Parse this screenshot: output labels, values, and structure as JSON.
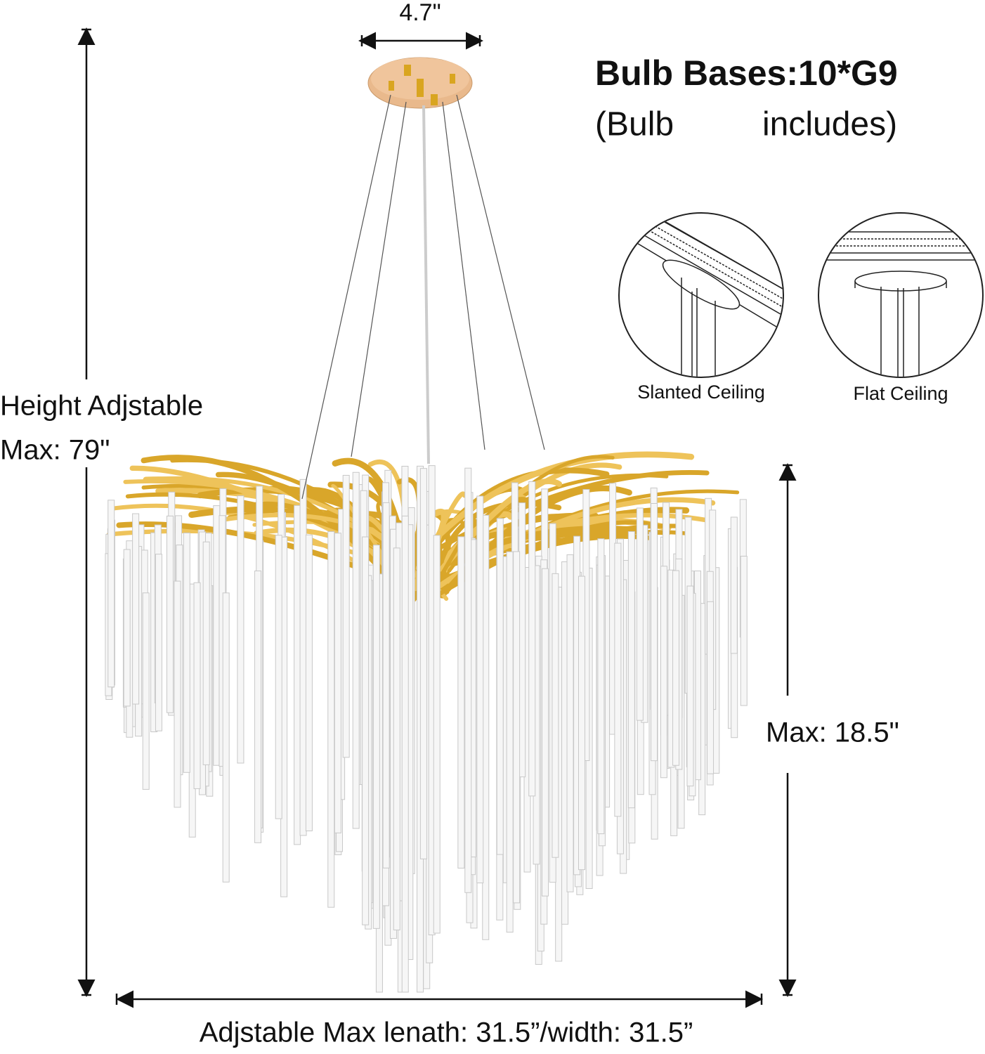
{
  "dimensions": {
    "canopy_width": "4.7\"",
    "height_label": "Height Adjstable",
    "height_max": "Max: 79\"",
    "body_height": "Max: 18.5\"",
    "width": "Adjstable Max lenath: 31.5”/width: 31.5”"
  },
  "bulb_info": {
    "title": "Bulb Bases:10*G9",
    "note_start": "(Bulb",
    "note_end": "includes)"
  },
  "mounting": [
    {
      "label": "Slanted Ceiling"
    },
    {
      "label": "Flat Ceiling"
    }
  ]
}
